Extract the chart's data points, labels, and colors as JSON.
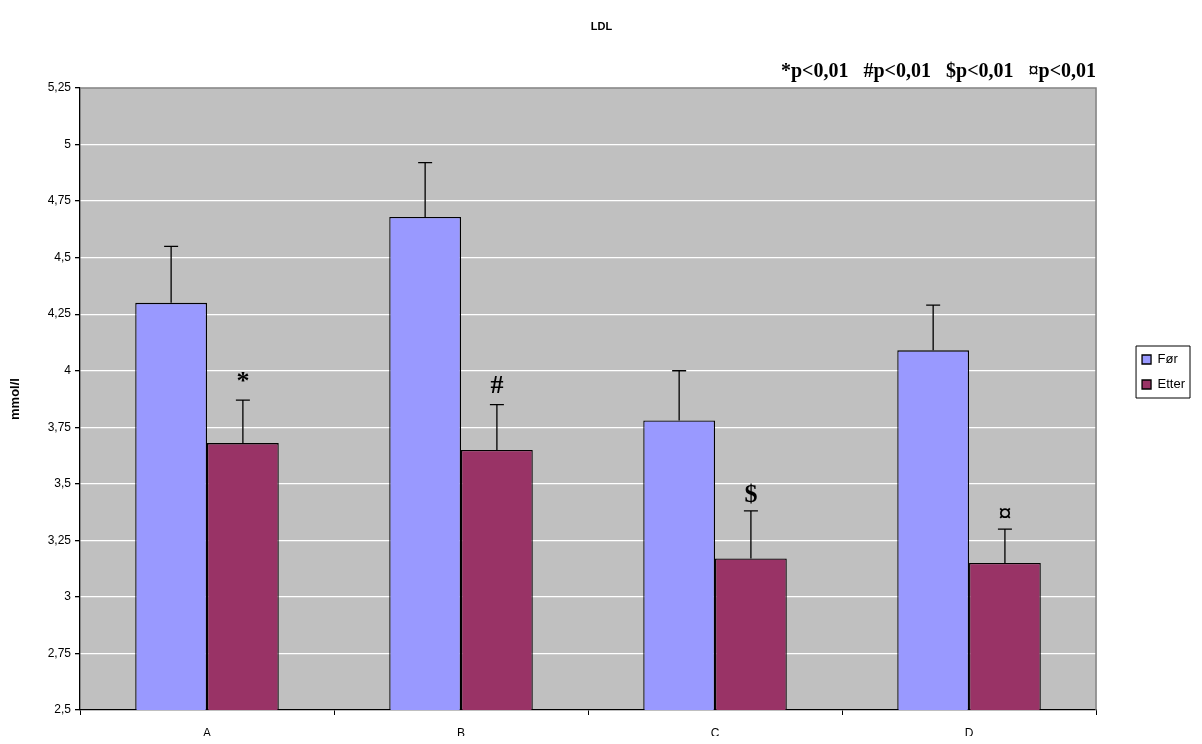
{
  "chart_data": {
    "type": "bar",
    "title": "LDL",
    "ylabel": "mmol/l",
    "categories": [
      "A",
      "B",
      "C",
      "D"
    ],
    "series": [
      {
        "name": "Før",
        "color": "#9999ff",
        "values": [
          4.3,
          4.68,
          3.78,
          4.09
        ],
        "errors": [
          [
            4.3,
            4.55
          ],
          [
            4.68,
            4.92
          ],
          [
            3.78,
            4.0
          ],
          [
            4.09,
            4.29
          ]
        ]
      },
      {
        "name": "Etter",
        "color": "#993366",
        "values": [
          3.68,
          3.65,
          3.17,
          3.15
        ],
        "errors": [
          [
            3.68,
            3.87
          ],
          [
            3.65,
            3.85
          ],
          [
            3.17,
            3.38
          ],
          [
            3.15,
            3.3
          ]
        ]
      }
    ],
    "ylim": [
      2.5,
      5.25
    ],
    "yticks": [
      {
        "value": 2.5,
        "label": "2,5"
      },
      {
        "value": 2.75,
        "label": "2,75"
      },
      3,
      {
        "value": 3.25,
        "label": "3,25"
      },
      {
        "value": 3.5,
        "label": "3,5"
      },
      {
        "value": 3.75,
        "label": "3,75"
      },
      4,
      {
        "value": 4.25,
        "label": "4,25"
      },
      {
        "value": 4.5,
        "label": "4,5"
      },
      {
        "value": 4.75,
        "label": "4,75"
      },
      5,
      {
        "value": 5.25,
        "label": "5,25"
      }
    ],
    "grid": "y",
    "legend": "right",
    "annotations": [
      {
        "text": "*",
        "x": "A",
        "y": 3.95
      },
      {
        "text": "#",
        "x": "B",
        "y": 3.93
      },
      {
        "text": "$",
        "x": "C",
        "y": 3.45
      },
      {
        "text": "¤",
        "x": "D",
        "y": 3.36
      },
      "*p<0,01",
      "#p<0,01",
      "$p<0,01",
      "¤p<0,01"
    ]
  }
}
